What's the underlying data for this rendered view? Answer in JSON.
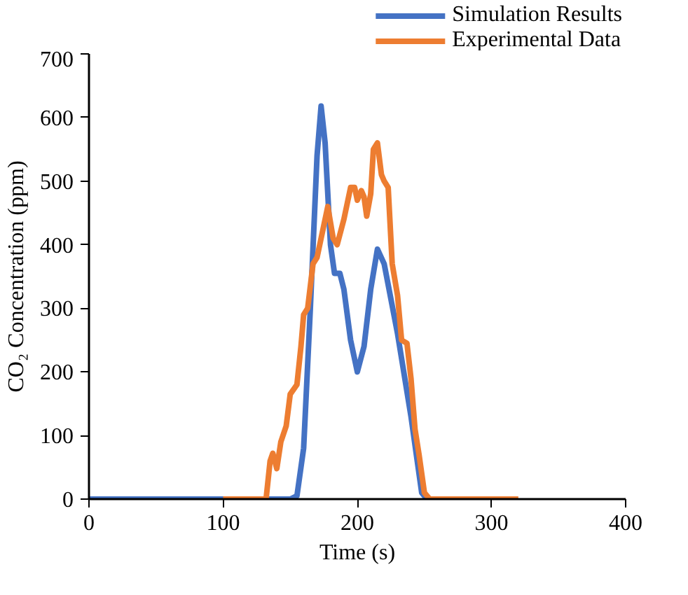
{
  "chart_data": {
    "type": "line",
    "xlabel": "Time (s)",
    "ylabel": "CO₂ Concentration (ppm)",
    "xlim": [
      0,
      400
    ],
    "xticks": [
      0,
      100,
      200,
      300,
      400
    ],
    "ylim": [
      0,
      700
    ],
    "yticks": [
      0,
      100,
      200,
      300,
      400,
      500,
      600,
      700
    ],
    "grid": false,
    "legend": "top right",
    "line_style": "solid",
    "marker": "none",
    "series": [
      {
        "name": "Simulation Results",
        "color": "#4472c4",
        "x": [
          0,
          100,
          150,
          155,
          160,
          165,
          170,
          173,
          176,
          180,
          183,
          187,
          190,
          195,
          200,
          205,
          210,
          215,
          220,
          230,
          240,
          248,
          252
        ],
        "values": [
          0,
          0,
          0,
          5,
          80,
          300,
          540,
          618,
          560,
          400,
          355,
          355,
          330,
          250,
          200,
          240,
          330,
          393,
          370,
          260,
          130,
          10,
          0
        ]
      },
      {
        "name": "Experimental Data",
        "color": "#ed7d31",
        "x": [
          100,
          132,
          135,
          137,
          140,
          143,
          147,
          150,
          155,
          158,
          160,
          163,
          167,
          170,
          175,
          178,
          182,
          185,
          190,
          195,
          198,
          200,
          203,
          205,
          207,
          210,
          212,
          215,
          218,
          220,
          223,
          226,
          230,
          233,
          237,
          240,
          243,
          246,
          250,
          254,
          320
        ],
        "values": [
          0,
          0,
          60,
          72,
          48,
          90,
          115,
          165,
          180,
          240,
          290,
          300,
          370,
          380,
          430,
          460,
          410,
          400,
          440,
          490,
          490,
          470,
          485,
          475,
          445,
          480,
          550,
          560,
          510,
          500,
          490,
          370,
          320,
          250,
          245,
          190,
          110,
          70,
          10,
          0,
          0
        ]
      }
    ]
  }
}
